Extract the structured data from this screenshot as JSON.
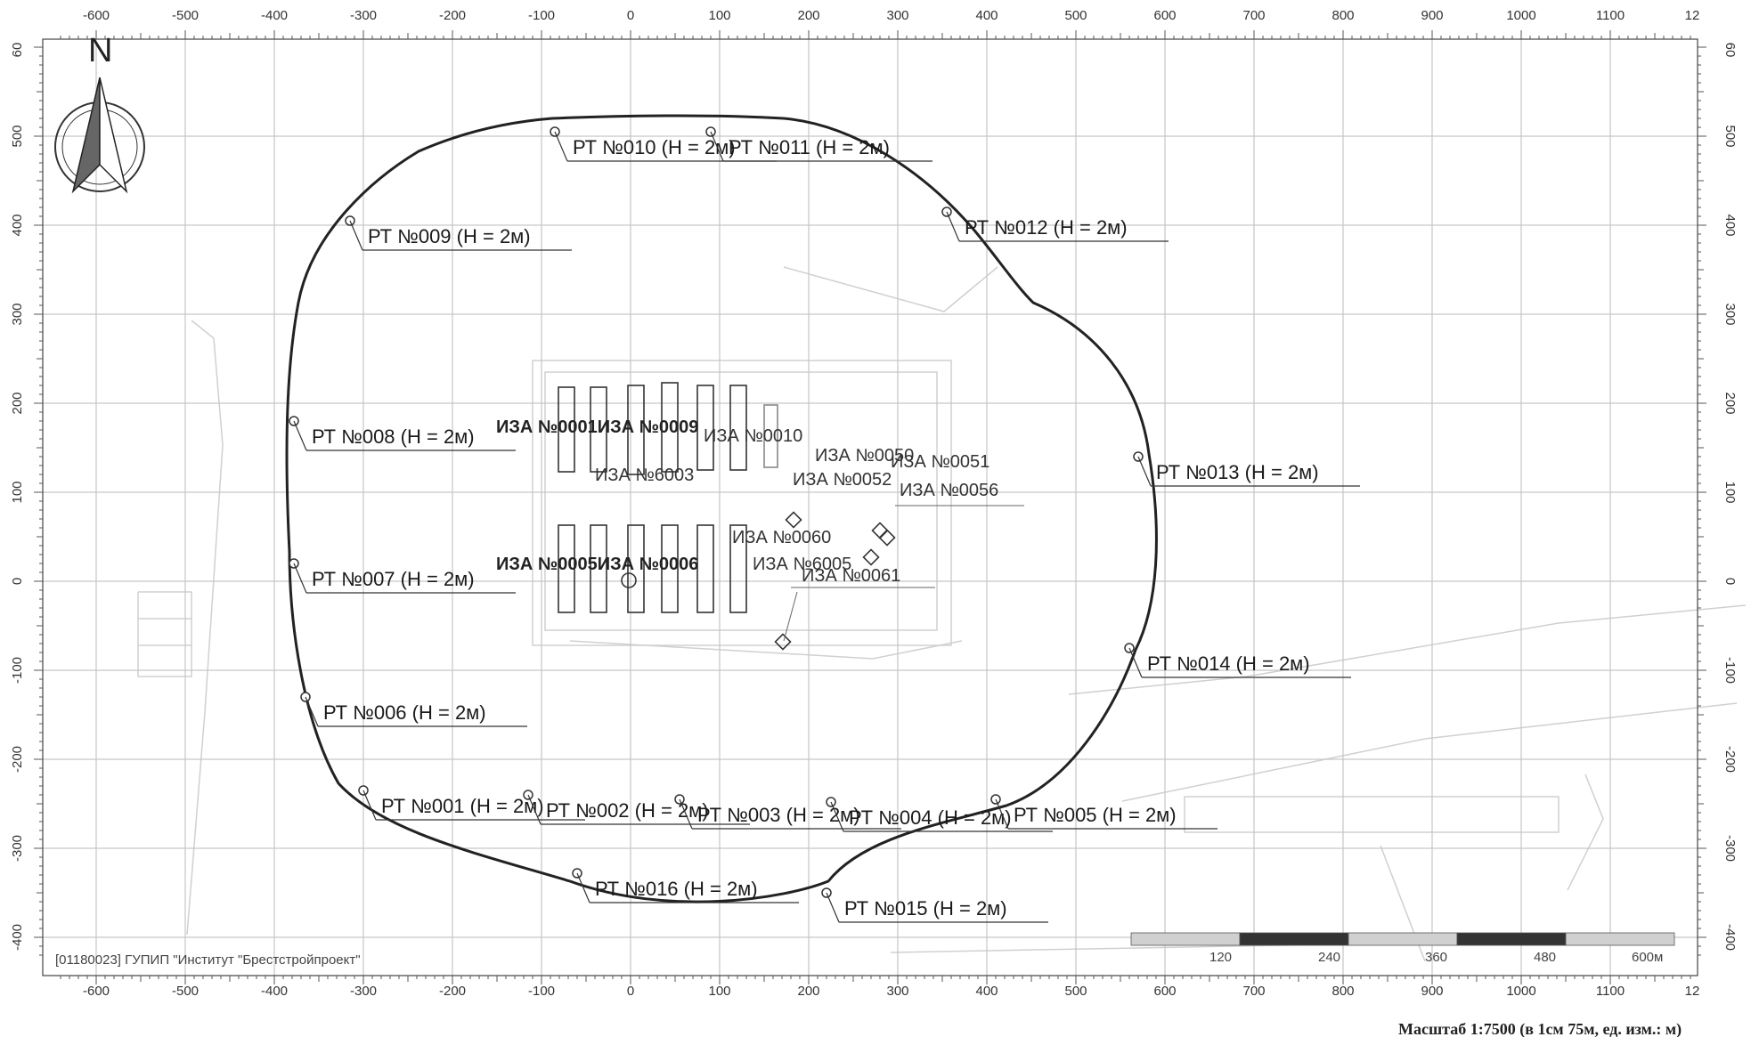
{
  "axes": {
    "x_ticks": [
      "-600",
      "-500",
      "-400",
      "-300",
      "-200",
      "-100",
      "0",
      "100",
      "200",
      "300",
      "400",
      "500",
      "600",
      "700",
      "800",
      "900",
      "1000",
      "1100"
    ],
    "x_ticks_values": [
      -600,
      -500,
      -400,
      -300,
      -200,
      -100,
      0,
      100,
      200,
      300,
      400,
      500,
      600,
      700,
      800,
      900,
      1000,
      1100
    ],
    "x_edge_label": "12",
    "y_ticks": [
      "500",
      "400",
      "300",
      "200",
      "100",
      "0",
      "-100",
      "-200",
      "-300",
      "-400"
    ],
    "y_ticks_values": [
      500,
      400,
      300,
      200,
      100,
      0,
      -100,
      -200,
      -300,
      -400
    ],
    "y_top_label": "60",
    "y_right_top_label": "60",
    "x_range": [
      -600,
      1200
    ],
    "y_range": [
      -400,
      600
    ],
    "units": "м"
  },
  "north_arrow": {
    "label": "N",
    "icon": "north-arrow-icon"
  },
  "receptors": [
    {
      "label": "РТ №001 (Н = 2м)",
      "x": -300,
      "y": -235
    },
    {
      "label": "РТ №002 (Н = 2м)",
      "x": -115,
      "y": -240
    },
    {
      "label": "РТ №003 (Н = 2м)",
      "x": 55,
      "y": -245
    },
    {
      "label": "РТ №004 (Н = 2м)",
      "x": 225,
      "y": -248
    },
    {
      "label": "РТ №005 (Н = 2м)",
      "x": 410,
      "y": -245
    },
    {
      "label": "РТ №006 (Н = 2м)",
      "x": -365,
      "y": -130
    },
    {
      "label": "РТ №007 (Н = 2м)",
      "x": -378,
      "y": 20
    },
    {
      "label": "РТ №008 (Н = 2м)",
      "x": -378,
      "y": 180
    },
    {
      "label": "РТ №009 (Н = 2м)",
      "x": -315,
      "y": 405
    },
    {
      "label": "РТ №010 (Н = 2м)",
      "x": -85,
      "y": 505
    },
    {
      "label": "РТ №011 (Н = 2м)",
      "x": 90,
      "y": 505
    },
    {
      "label": "РТ №012 (Н = 2м)",
      "x": 355,
      "y": 415
    },
    {
      "label": "РТ №013 (Н = 2м)",
      "x": 570,
      "y": 140
    },
    {
      "label": "РТ №014 (Н = 2м)",
      "x": 560,
      "y": -75
    },
    {
      "label": "РТ №015 (Н = 2м)",
      "x": 220,
      "y": -350
    },
    {
      "label": "РТ №016 (Н = 2м)",
      "x": -60,
      "y": -328
    }
  ],
  "sources": [
    {
      "label": "ИЗА №6003"
    },
    {
      "label": "ИЗА №0010"
    },
    {
      "label": "ИЗА №0050"
    },
    {
      "label": "ИЗА №0056"
    },
    {
      "label": "ИЗА №0061"
    },
    {
      "label": "ИЗА №6005"
    },
    {
      "label": "ИЗА №0009"
    }
  ],
  "overlapping_labels": {
    "top_row": "ИЗА №0001ИЗА №0009",
    "bottom_row": "ИЗА №0005ИЗА №0006",
    "center_cluster": "ИЗА №0060",
    "east_cluster_a": "ИЗА №0052",
    "east_cluster_b": "ИЗА №0051"
  },
  "scale_bar": {
    "labels": [
      "120",
      "240",
      "360",
      "480",
      "600м"
    ],
    "caption": "Масштаб 1:7500 (в 1см 75м, ед. изм.: м)"
  },
  "organization": "[01180023] ГУПИП \"Институт \"Брестстройпроект\"",
  "colors": {
    "grid": "#c8c8c8",
    "contour": "#222222",
    "background": "#ffffff",
    "basemap": "#d6d6d6"
  }
}
